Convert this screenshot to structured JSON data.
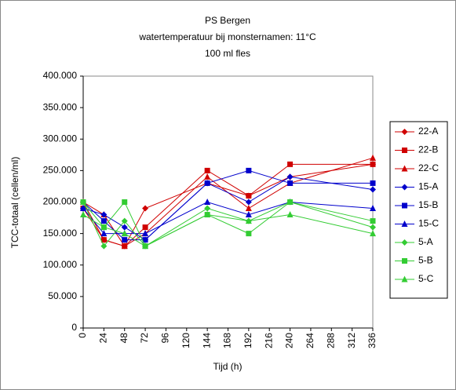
{
  "chart_data": {
    "type": "line",
    "title": "PS Bergen",
    "subtitles": [
      "watertemperatuur bij monsternamen: 11°C",
      "100 ml fles"
    ],
    "x_label": "Tijd (h)",
    "y_label": "TCC-totaal (cellen/ml)",
    "x": [
      0,
      24,
      48,
      72,
      144,
      192,
      240,
      336
    ],
    "xlim": [
      0,
      336
    ],
    "xticks": [
      0,
      24,
      48,
      72,
      96,
      120,
      144,
      168,
      192,
      216,
      240,
      264,
      288,
      312,
      336
    ],
    "ylim": [
      0,
      400000
    ],
    "yticks": [
      {
        "value": 0,
        "label": "0"
      },
      {
        "value": 50000,
        "label": "50.000"
      },
      {
        "value": 100000,
        "label": "100.000"
      },
      {
        "value": 150000,
        "label": "150.000"
      },
      {
        "value": 200000,
        "label": "200.000"
      },
      {
        "value": 250000,
        "label": "250.000"
      },
      {
        "value": 300000,
        "label": "300.000"
      },
      {
        "value": 350000,
        "label": "350.000"
      },
      {
        "value": 400000,
        "label": "400.000"
      }
    ],
    "legend": "right",
    "series": [
      {
        "name": "22-A",
        "color": "#d00000",
        "marker": "diamond",
        "values": [
          200000,
          140000,
          130000,
          190000,
          230000,
          210000,
          240000,
          260000
        ]
      },
      {
        "name": "22-B",
        "color": "#d00000",
        "marker": "square",
        "values": [
          190000,
          140000,
          130000,
          160000,
          250000,
          210000,
          260000,
          260000
        ]
      },
      {
        "name": "22-C",
        "color": "#d00000",
        "marker": "triangle",
        "values": [
          200000,
          180000,
          130000,
          150000,
          240000,
          190000,
          230000,
          270000
        ]
      },
      {
        "name": "15-A",
        "color": "#0000cc",
        "marker": "diamond",
        "values": [
          190000,
          180000,
          160000,
          140000,
          230000,
          200000,
          240000,
          220000
        ]
      },
      {
        "name": "15-B",
        "color": "#0000cc",
        "marker": "square",
        "values": [
          200000,
          170000,
          140000,
          140000,
          230000,
          250000,
          230000,
          230000
        ]
      },
      {
        "name": "15-C",
        "color": "#0000cc",
        "marker": "triangle",
        "values": [
          190000,
          150000,
          150000,
          150000,
          200000,
          180000,
          200000,
          190000
        ]
      },
      {
        "name": "5-A",
        "color": "#33cc33",
        "marker": "diamond",
        "values": [
          200000,
          130000,
          170000,
          130000,
          190000,
          170000,
          200000,
          160000
        ]
      },
      {
        "name": "5-B",
        "color": "#33cc33",
        "marker": "square",
        "values": [
          200000,
          160000,
          200000,
          130000,
          180000,
          150000,
          200000,
          170000
        ]
      },
      {
        "name": "5-C",
        "color": "#33cc33",
        "marker": "triangle",
        "values": [
          180000,
          160000,
          150000,
          130000,
          180000,
          170000,
          180000,
          150000
        ]
      }
    ]
  }
}
